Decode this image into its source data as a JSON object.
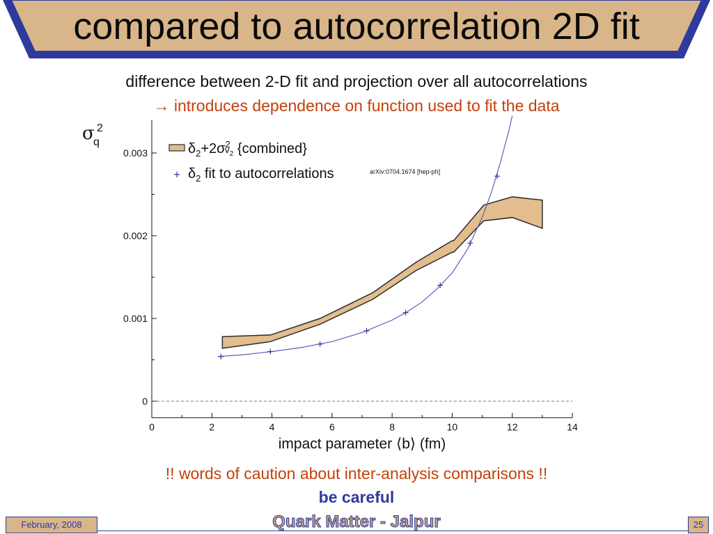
{
  "slide": {
    "title": "compared to autocorrelation 2D fit",
    "subtitle1": "difference between 2-D fit and projection over all autocorrelations",
    "subtitle2_arrow": "→",
    "subtitle2": "introduces dependence on function used to fit the data",
    "caution": "!! words of caution about inter-analysis comparisons !!",
    "be_careful": "be careful",
    "footer_date": "February, 2008",
    "footer_center": "Quark Matter - Jaipur",
    "page_number": "25",
    "colors": {
      "title_band": "#d9b58a",
      "title_border": "#2e3a9c",
      "accent_orange": "#c2410c",
      "accent_blue": "#2e3a9c",
      "band_fill": "#e3bd8e",
      "fit_line": "#5a5fb8"
    }
  },
  "chart_data": {
    "type": "line",
    "xlabel": "impact parameter ⟨b⟩ (fm)",
    "ylabel": "σ",
    "ylabel_sub": "q",
    "ylabel_sup": "2",
    "xlim": [
      0,
      14
    ],
    "ylim": [
      -0.0002,
      0.0034
    ],
    "x_ticks": [
      0,
      2,
      4,
      6,
      8,
      10,
      12,
      14
    ],
    "x_tick_labels": [
      "0",
      "2",
      "4",
      "6",
      "8",
      "10",
      "12",
      "14"
    ],
    "y_ticks": [
      0,
      0.001,
      0.002,
      0.003
    ],
    "y_tick_labels": [
      "0",
      "0.001",
      "0.002",
      "0.003"
    ],
    "annotation": "arXiv:0704.1674 [hep-ph]",
    "legend": {
      "band_label": "δ₂+2σ²ᵥ₂ {combined}",
      "band_label_parts": [
        "δ",
        "2",
        "+2σ",
        "2",
        "v",
        "2",
        " {combined}"
      ],
      "points_label_parts": [
        "δ",
        "2",
        " fit to autocorrelations"
      ],
      "points_marker": "+"
    },
    "series": [
      {
        "name": "δ₂+2σ²ᵥ₂ {combined}",
        "kind": "band",
        "x": [
          2.35,
          3.95,
          5.6,
          7.35,
          8.8,
          10.0,
          10.05,
          11.05,
          12.0,
          13.0
        ],
        "upper": [
          0.00078,
          0.0008,
          0.001,
          0.00131,
          0.00168,
          0.00194,
          0.00194,
          0.00237,
          0.00247,
          0.00243
        ],
        "lower": [
          0.00064,
          0.00072,
          0.00093,
          0.00123,
          0.00158,
          0.0018,
          0.0018,
          0.00218,
          0.00222,
          0.00209
        ]
      },
      {
        "name": "δ₂ fit to autocorrelations",
        "kind": "points",
        "x": [
          2.3,
          3.95,
          5.6,
          7.15,
          8.45,
          9.6,
          10.6,
          11.5
        ],
        "values": [
          0.00054,
          0.0006,
          0.00069,
          0.00085,
          0.00107,
          0.0014,
          0.00191,
          0.00272
        ]
      }
    ],
    "curve": {
      "kind": "fit-line",
      "x": [
        2.2,
        3.0,
        4.0,
        5.0,
        6.0,
        7.0,
        8.0,
        8.5,
        9.0,
        9.5,
        10.0,
        10.5,
        11.0,
        11.3,
        11.6,
        11.9,
        12.0
      ],
      "values": [
        0.00054,
        0.00056,
        0.0006,
        0.00065,
        0.00072,
        0.00083,
        0.00098,
        0.00108,
        0.0012,
        0.00136,
        0.00155,
        0.00183,
        0.00222,
        0.00252,
        0.00288,
        0.00329,
        0.00345
      ]
    },
    "grid": false,
    "zero_line": "dashed"
  }
}
